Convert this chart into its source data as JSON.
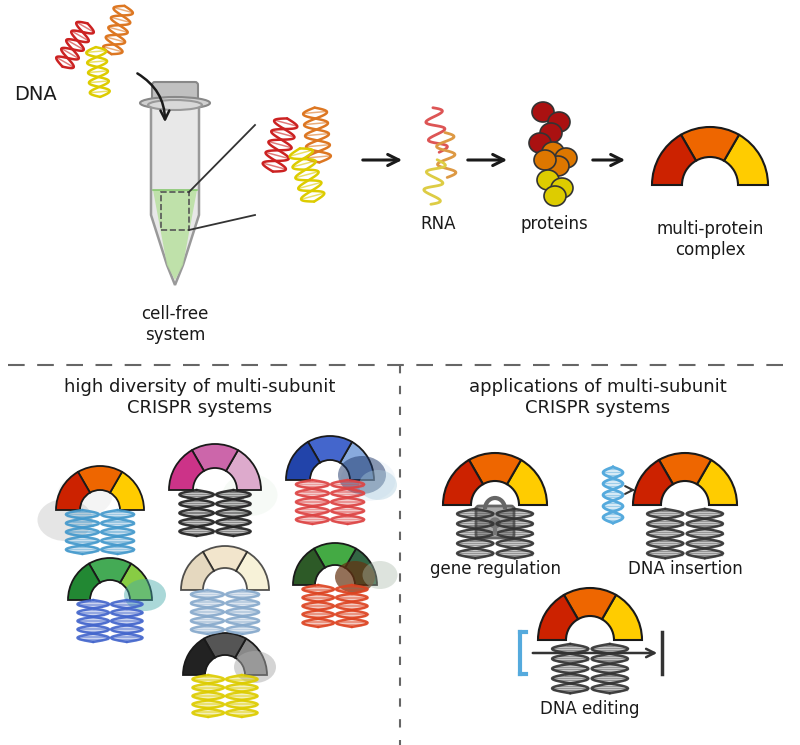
{
  "bg_color": "#ffffff",
  "dna_colors": [
    "#cc2222",
    "#dd7722",
    "#ddcc00"
  ],
  "rna_colors": [
    "#dd5555",
    "#dd9944",
    "#ddcc44"
  ],
  "protein_colors": [
    "#aa1111",
    "#dd7700",
    "#ddcc00"
  ],
  "complex_colors": [
    "#cc2200",
    "#ee6600",
    "#ffcc00"
  ],
  "text_color": "#1a1a1a",
  "arrow_color": "#1a1a1a",
  "dashed_color": "#666666",
  "blue_dna": "#55aadd",
  "labels": {
    "dna": "DNA",
    "rna": "RNA",
    "proteins": "proteins",
    "complex": "multi-protein\ncomplex",
    "cellfree": "cell-free\nsystem",
    "diversity": "high diversity of multi-subunit\nCRISPR systems",
    "applications": "applications of multi-subunit\nCRISPR systems",
    "gene_reg": "gene regulation",
    "dna_insert": "DNA insertion",
    "dna_edit": "DNA editing"
  }
}
